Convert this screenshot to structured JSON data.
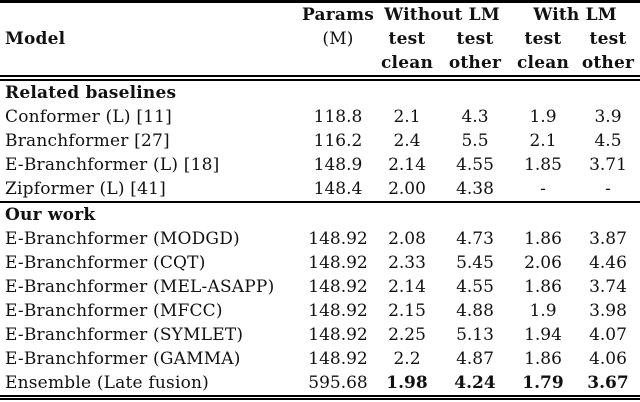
{
  "page": {
    "background_color": "#ffffff",
    "text_color": "#111111",
    "rule_color": "#000000"
  },
  "table": {
    "header": {
      "model": "Model",
      "params": "Params",
      "params_unit": "(M)",
      "without_lm": "Without LM",
      "with_lm": "With LM",
      "sub_test": "test",
      "sub_clean": "clean",
      "sub_other": "other"
    },
    "columns": [
      "Model",
      "Params (M)",
      "Without LM test clean",
      "Without LM test other",
      "With LM test clean",
      "With LM test other"
    ],
    "sections": [
      {
        "title": "Related baselines",
        "rows": [
          {
            "model": "Conformer (L) [11]",
            "params": "118.8",
            "values": [
              "2.1",
              "4.3",
              "1.9",
              "3.9"
            ],
            "bold_values": false
          },
          {
            "model": "Branchformer [27]",
            "params": "116.2",
            "values": [
              "2.4",
              "5.5",
              "2.1",
              "4.5"
            ],
            "bold_values": false
          },
          {
            "model": "E-Branchformer (L) [18]",
            "params": "148.9",
            "values": [
              "2.14",
              "4.55",
              "1.85",
              "3.71"
            ],
            "bold_values": false
          },
          {
            "model": "Zipformer (L) [41]",
            "params": "148.4",
            "values": [
              "2.00",
              "4.38",
              "-",
              "-"
            ],
            "bold_values": false
          }
        ]
      },
      {
        "title": "Our work",
        "rows": [
          {
            "model": "E-Branchformer (MODGD)",
            "params": "148.92",
            "values": [
              "2.08",
              "4.73",
              "1.86",
              "3.87"
            ],
            "bold_values": false
          },
          {
            "model": "E-Branchformer (CQT)",
            "params": "148.92",
            "values": [
              "2.33",
              "5.45",
              "2.06",
              "4.46"
            ],
            "bold_values": false
          },
          {
            "model": "E-Branchformer (MEL-ASAPP)",
            "params": "148.92",
            "values": [
              "2.14",
              "4.55",
              "1.86",
              "3.74"
            ],
            "bold_values": false
          },
          {
            "model": "E-Branchformer (MFCC)",
            "params": "148.92",
            "values": [
              "2.15",
              "4.88",
              "1.9",
              "3.98"
            ],
            "bold_values": false
          },
          {
            "model": "E-Branchformer (SYMLET)",
            "params": "148.92",
            "values": [
              "2.25",
              "5.13",
              "1.94",
              "4.07"
            ],
            "bold_values": false
          },
          {
            "model": "E-Branchformer (GAMMA)",
            "params": "148.92",
            "values": [
              "2.2",
              "4.87",
              "1.86",
              "4.06"
            ],
            "bold_values": false
          },
          {
            "model": "Ensemble (Late fusion)",
            "params": "595.68",
            "values": [
              "1.98",
              "4.24",
              "1.79",
              "3.67"
            ],
            "bold_values": true
          }
        ]
      }
    ]
  }
}
